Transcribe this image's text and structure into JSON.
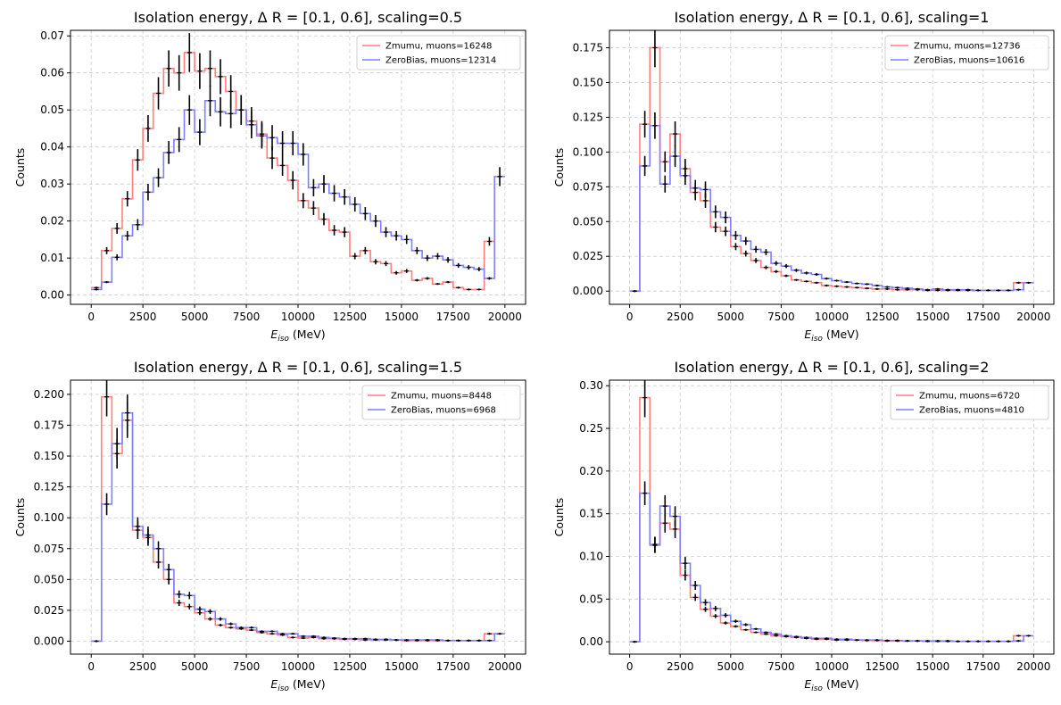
{
  "chart_data": [
    {
      "type": "line",
      "title": "Isolation energy, Δ R = [0.1, 0.6], scaling=0.5",
      "xlabel": "E_iso (MeV)",
      "xlabel_main": "E",
      "xlabel_sub": "iso",
      "xlabel_unit": " (MeV)",
      "ylabel": "Counts",
      "xlim": [
        -1000,
        21000
      ],
      "ylim": [
        -0.0025,
        0.0715
      ],
      "xticks": [
        0,
        2500,
        5000,
        7500,
        10000,
        12500,
        15000,
        17500,
        20000
      ],
      "yticks": [
        0.0,
        0.01,
        0.02,
        0.03,
        0.04,
        0.05,
        0.06,
        0.07
      ],
      "ytick_labels": [
        "0.00",
        "0.01",
        "0.02",
        "0.03",
        "0.04",
        "0.05",
        "0.06",
        "0.07"
      ],
      "grid": true,
      "legend": "top-right",
      "series": [
        {
          "name": "Zmumu, muons=16248",
          "color": "#ff7f7f",
          "values": [
            0.002,
            0.012,
            0.018,
            0.026,
            0.0365,
            0.045,
            0.0545,
            0.0612,
            0.06,
            0.0655,
            0.0605,
            0.0612,
            0.059,
            0.055,
            0.05,
            0.047,
            0.0435,
            0.037,
            0.035,
            0.031,
            0.0255,
            0.0235,
            0.0205,
            0.0175,
            0.017,
            0.0105,
            0.012,
            0.009,
            0.0085,
            0.006,
            0.0065,
            0.004,
            0.0045,
            0.003,
            0.0035,
            0.002,
            0.0015,
            0.0015,
            0.0145
          ]
        },
        {
          "name": "ZeroBias, muons=12314",
          "color": "#7f7fff",
          "values": [
            0.0015,
            0.0035,
            0.0102,
            0.016,
            0.019,
            0.0278,
            0.0317,
            0.0385,
            0.042,
            0.05,
            0.044,
            0.0525,
            0.0495,
            0.049,
            0.05,
            0.046,
            0.043,
            0.0425,
            0.041,
            0.041,
            0.038,
            0.029,
            0.03,
            0.0275,
            0.0265,
            0.0245,
            0.022,
            0.02,
            0.017,
            0.016,
            0.015,
            0.012,
            0.01,
            0.0105,
            0.0095,
            0.008,
            0.0075,
            0.007,
            0.0045,
            0.032
          ]
        }
      ]
    },
    {
      "type": "line",
      "title": "Isolation energy, Δ R = [0.1, 0.6], scaling=1",
      "xlabel": "E_iso (MeV)",
      "xlabel_main": "E",
      "xlabel_sub": "iso",
      "xlabel_unit": " (MeV)",
      "ylabel": "Counts",
      "xlim": [
        -1000,
        21000
      ],
      "ylim": [
        -0.0095,
        0.1875
      ],
      "xticks": [
        0,
        2500,
        5000,
        7500,
        10000,
        12500,
        15000,
        17500,
        20000
      ],
      "yticks": [
        0.0,
        0.025,
        0.05,
        0.075,
        0.1,
        0.125,
        0.15,
        0.175
      ],
      "ytick_labels": [
        "0.000",
        "0.025",
        "0.050",
        "0.075",
        "0.100",
        "0.125",
        "0.150",
        "0.175"
      ],
      "grid": true,
      "legend": "top-right",
      "series": [
        {
          "name": "Zmumu, muons=12736",
          "color": "#ff7f7f",
          "values": [
            0.0,
            0.12,
            0.175,
            0.093,
            0.113,
            0.088,
            0.071,
            0.065,
            0.046,
            0.043,
            0.032,
            0.027,
            0.022,
            0.017,
            0.014,
            0.011,
            0.008,
            0.007,
            0.006,
            0.004,
            0.0035,
            0.003,
            0.0025,
            0.002,
            0.0015,
            0.0015,
            0.001,
            0.001,
            0.001,
            0.0005,
            0.0005,
            0.0005,
            0.0005,
            0.0005,
            0.0005,
            0.0005,
            0.0005,
            0.0005,
            0.006
          ]
        },
        {
          "name": "ZeroBias, muons=10616",
          "color": "#7f7fff",
          "values": [
            0.0,
            0.09,
            0.119,
            0.077,
            0.097,
            0.083,
            0.074,
            0.073,
            0.057,
            0.053,
            0.04,
            0.036,
            0.03,
            0.028,
            0.02,
            0.018,
            0.015,
            0.013,
            0.012,
            0.009,
            0.0075,
            0.0065,
            0.0055,
            0.005,
            0.004,
            0.003,
            0.0025,
            0.002,
            0.0015,
            0.001,
            0.0015,
            0.001,
            0.001,
            0.001,
            0.0005,
            0.0005,
            0.0005,
            0.0005,
            0.001,
            0.006
          ]
        }
      ]
    },
    {
      "type": "line",
      "title": "Isolation energy, Δ R = [0.1, 0.6], scaling=1.5",
      "xlabel": "E_iso (MeV)",
      "xlabel_main": "E",
      "xlabel_sub": "iso",
      "xlabel_unit": " (MeV)",
      "ylabel": "Counts",
      "xlim": [
        -1000,
        21000
      ],
      "ylim": [
        -0.0105,
        0.2115
      ],
      "xticks": [
        0,
        2500,
        5000,
        7500,
        10000,
        12500,
        15000,
        17500,
        20000
      ],
      "yticks": [
        0.0,
        0.025,
        0.05,
        0.075,
        0.1,
        0.125,
        0.15,
        0.175,
        0.2
      ],
      "ytick_labels": [
        "0.000",
        "0.025",
        "0.050",
        "0.075",
        "0.100",
        "0.125",
        "0.150",
        "0.175",
        "0.200"
      ],
      "grid": true,
      "legend": "top-right",
      "series": [
        {
          "name": "Zmumu, muons=8448",
          "color": "#ff7f7f",
          "values": [
            0.0,
            0.198,
            0.152,
            0.179,
            0.09,
            0.084,
            0.064,
            0.05,
            0.031,
            0.028,
            0.023,
            0.018,
            0.013,
            0.011,
            0.01,
            0.009,
            0.007,
            0.006,
            0.005,
            0.003,
            0.0025,
            0.003,
            0.002,
            0.002,
            0.0015,
            0.0015,
            0.001,
            0.001,
            0.001,
            0.001,
            0.0005,
            0.0005,
            0.0005,
            0.0005,
            0.0005,
            0.0005,
            0.0005,
            0.0005,
            0.006
          ]
        },
        {
          "name": "ZeroBias, muons=6968",
          "color": "#7f7fff",
          "values": [
            0.0,
            0.111,
            0.16,
            0.185,
            0.093,
            0.086,
            0.075,
            0.058,
            0.038,
            0.037,
            0.026,
            0.024,
            0.018,
            0.014,
            0.011,
            0.011,
            0.008,
            0.008,
            0.006,
            0.006,
            0.004,
            0.004,
            0.003,
            0.0025,
            0.002,
            0.002,
            0.002,
            0.0015,
            0.0015,
            0.001,
            0.001,
            0.001,
            0.001,
            0.001,
            0.0005,
            0.0005,
            0.0005,
            0.0005,
            0.0005,
            0.006
          ]
        }
      ]
    },
    {
      "type": "line",
      "title": "Isolation energy, Δ R = [0.1, 0.6], scaling=2",
      "xlabel": "E_iso (MeV)",
      "xlabel_main": "E",
      "xlabel_sub": "iso",
      "xlabel_unit": " (MeV)",
      "ylabel": "Counts",
      "xlim": [
        -1000,
        21000
      ],
      "ylim": [
        -0.0145,
        0.3065
      ],
      "xticks": [
        0,
        2500,
        5000,
        7500,
        10000,
        12500,
        15000,
        17500,
        20000
      ],
      "yticks": [
        0.0,
        0.05,
        0.1,
        0.15,
        0.2,
        0.25,
        0.3
      ],
      "ytick_labels": [
        "0.00",
        "0.05",
        "0.10",
        "0.15",
        "0.20",
        "0.25",
        "0.30"
      ],
      "grid": true,
      "legend": "top-right",
      "series": [
        {
          "name": "Zmumu, muons=6720",
          "color": "#ff7f7f",
          "values": [
            0.0,
            0.286,
            0.113,
            0.139,
            0.132,
            0.078,
            0.052,
            0.038,
            0.03,
            0.022,
            0.018,
            0.014,
            0.011,
            0.009,
            0.007,
            0.006,
            0.005,
            0.004,
            0.003,
            0.003,
            0.002,
            0.002,
            0.002,
            0.0015,
            0.0015,
            0.001,
            0.001,
            0.001,
            0.001,
            0.0005,
            0.0005,
            0.0005,
            0.0005,
            0.0005,
            0.0005,
            0.0005,
            0.0005,
            0.0005,
            0.007
          ]
        },
        {
          "name": "ZeroBias, muons=4810",
          "color": "#7f7fff",
          "values": [
            0.0,
            0.174,
            0.114,
            0.159,
            0.147,
            0.092,
            0.066,
            0.046,
            0.039,
            0.031,
            0.024,
            0.02,
            0.015,
            0.011,
            0.009,
            0.007,
            0.006,
            0.005,
            0.004,
            0.004,
            0.003,
            0.003,
            0.002,
            0.002,
            0.002,
            0.0015,
            0.0015,
            0.001,
            0.001,
            0.001,
            0.001,
            0.001,
            0.0005,
            0.0005,
            0.0005,
            0.0005,
            0.0005,
            0.0005,
            0.001,
            0.007
          ]
        }
      ]
    }
  ]
}
